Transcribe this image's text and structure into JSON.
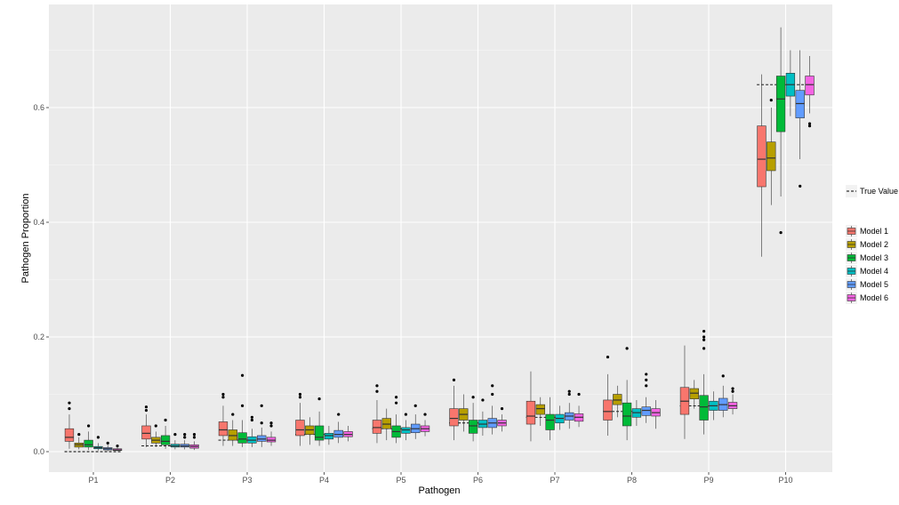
{
  "chart_data": {
    "type": "boxplot",
    "xlabel": "Pathogen",
    "ylabel": "Pathogen Proportion",
    "ylim": [
      -0.02,
      0.78
    ],
    "yticks": [
      0.0,
      0.2,
      0.4,
      0.6
    ],
    "ytick_labels": [
      "0.0",
      "0.2",
      "0.4",
      "0.6"
    ],
    "categories": [
      "P1",
      "P2",
      "P3",
      "P4",
      "P5",
      "P6",
      "P7",
      "P8",
      "P9",
      "P10"
    ],
    "grid": true,
    "legend_position": "right",
    "reference": {
      "name": "True Value",
      "style": "dashed",
      "values": [
        0.0,
        0.01,
        0.02,
        0.03,
        0.04,
        0.05,
        0.06,
        0.07,
        0.08,
        0.64
      ]
    },
    "series": [
      {
        "name": "Model 1",
        "color": "#F8766D",
        "boxes": [
          {
            "min": 0.005,
            "q1": 0.018,
            "median": 0.025,
            "q3": 0.04,
            "max": 0.065,
            "outliers": [
              0.075,
              0.085
            ]
          },
          {
            "min": 0.008,
            "q1": 0.022,
            "median": 0.032,
            "q3": 0.045,
            "max": 0.065,
            "outliers": [
              0.072,
              0.078
            ]
          },
          {
            "min": 0.01,
            "q1": 0.028,
            "median": 0.038,
            "q3": 0.052,
            "max": 0.08,
            "outliers": [
              0.095,
              0.1
            ]
          },
          {
            "min": 0.01,
            "q1": 0.028,
            "median": 0.038,
            "q3": 0.055,
            "max": 0.085,
            "outliers": [
              0.095,
              0.1
            ]
          },
          {
            "min": 0.015,
            "q1": 0.032,
            "median": 0.042,
            "q3": 0.055,
            "max": 0.09,
            "outliers": [
              0.105,
              0.115
            ]
          },
          {
            "min": 0.02,
            "q1": 0.045,
            "median": 0.058,
            "q3": 0.075,
            "max": 0.115,
            "outliers": [
              0.125
            ]
          },
          {
            "min": 0.018,
            "q1": 0.048,
            "median": 0.062,
            "q3": 0.088,
            "max": 0.14,
            "outliers": []
          },
          {
            "min": 0.028,
            "q1": 0.055,
            "median": 0.07,
            "q3": 0.09,
            "max": 0.135,
            "outliers": [
              0.165
            ]
          },
          {
            "min": 0.022,
            "q1": 0.065,
            "median": 0.088,
            "q3": 0.112,
            "max": 0.185,
            "outliers": []
          },
          {
            "min": 0.34,
            "q1": 0.462,
            "median": 0.51,
            "q3": 0.568,
            "max": 0.658,
            "outliers": []
          }
        ]
      },
      {
        "name": "Model 2",
        "color": "#B79F00",
        "boxes": [
          {
            "min": 0.004,
            "q1": 0.008,
            "median": 0.012,
            "q3": 0.015,
            "max": 0.025,
            "outliers": [
              0.03
            ]
          },
          {
            "min": 0.008,
            "q1": 0.015,
            "median": 0.02,
            "q3": 0.025,
            "max": 0.035,
            "outliers": [
              0.045
            ]
          },
          {
            "min": 0.01,
            "q1": 0.02,
            "median": 0.028,
            "q3": 0.038,
            "max": 0.055,
            "outliers": [
              0.065
            ]
          },
          {
            "min": 0.012,
            "q1": 0.03,
            "median": 0.038,
            "q3": 0.045,
            "max": 0.06,
            "outliers": []
          },
          {
            "min": 0.02,
            "q1": 0.04,
            "median": 0.048,
            "q3": 0.058,
            "max": 0.075,
            "outliers": []
          },
          {
            "min": 0.035,
            "q1": 0.055,
            "median": 0.065,
            "q3": 0.075,
            "max": 0.1,
            "outliers": []
          },
          {
            "min": 0.045,
            "q1": 0.065,
            "median": 0.075,
            "q3": 0.082,
            "max": 0.095,
            "outliers": []
          },
          {
            "min": 0.06,
            "q1": 0.082,
            "median": 0.09,
            "q3": 0.1,
            "max": 0.115,
            "outliers": []
          },
          {
            "min": 0.075,
            "q1": 0.092,
            "median": 0.102,
            "q3": 0.11,
            "max": 0.125,
            "outliers": []
          },
          {
            "min": 0.43,
            "q1": 0.49,
            "median": 0.512,
            "q3": 0.54,
            "max": 0.6,
            "outliers": [
              0.613
            ]
          }
        ]
      },
      {
        "name": "Model 3",
        "color": "#00BA38",
        "boxes": [
          {
            "min": 0.003,
            "q1": 0.008,
            "median": 0.012,
            "q3": 0.02,
            "max": 0.035,
            "outliers": [
              0.045
            ]
          },
          {
            "min": 0.005,
            "q1": 0.012,
            "median": 0.018,
            "q3": 0.028,
            "max": 0.045,
            "outliers": [
              0.055
            ]
          },
          {
            "min": 0.008,
            "q1": 0.015,
            "median": 0.022,
            "q3": 0.033,
            "max": 0.055,
            "outliers": [
              0.08,
              0.133
            ]
          },
          {
            "min": 0.01,
            "q1": 0.02,
            "median": 0.025,
            "q3": 0.045,
            "max": 0.07,
            "outliers": [
              0.092
            ]
          },
          {
            "min": 0.015,
            "q1": 0.025,
            "median": 0.035,
            "q3": 0.045,
            "max": 0.065,
            "outliers": [
              0.085,
              0.095
            ]
          },
          {
            "min": 0.018,
            "q1": 0.032,
            "median": 0.045,
            "q3": 0.055,
            "max": 0.085,
            "outliers": [
              0.095
            ]
          },
          {
            "min": 0.02,
            "q1": 0.038,
            "median": 0.055,
            "q3": 0.065,
            "max": 0.095,
            "outliers": []
          },
          {
            "min": 0.02,
            "q1": 0.045,
            "median": 0.062,
            "q3": 0.085,
            "max": 0.125,
            "outliers": [
              0.18
            ]
          },
          {
            "min": 0.03,
            "q1": 0.055,
            "median": 0.078,
            "q3": 0.098,
            "max": 0.135,
            "outliers": [
              0.18,
              0.195,
              0.2,
              0.21
            ]
          },
          {
            "min": 0.445,
            "q1": 0.558,
            "median": 0.615,
            "q3": 0.655,
            "max": 0.74,
            "outliers": [
              0.382
            ]
          }
        ]
      },
      {
        "name": "Model 4",
        "color": "#00BFC4",
        "boxes": [
          {
            "min": 0.002,
            "q1": 0.005,
            "median": 0.007,
            "q3": 0.009,
            "max": 0.015,
            "outliers": [
              0.025
            ]
          },
          {
            "min": 0.004,
            "q1": 0.008,
            "median": 0.01,
            "q3": 0.013,
            "max": 0.02,
            "outliers": [
              0.03
            ]
          },
          {
            "min": 0.008,
            "q1": 0.015,
            "median": 0.02,
            "q3": 0.026,
            "max": 0.04,
            "outliers": [
              0.055,
              0.06
            ]
          },
          {
            "min": 0.012,
            "q1": 0.022,
            "median": 0.028,
            "q3": 0.032,
            "max": 0.045,
            "outliers": []
          },
          {
            "min": 0.02,
            "q1": 0.032,
            "median": 0.038,
            "q3": 0.042,
            "max": 0.055,
            "outliers": [
              0.065
            ]
          },
          {
            "min": 0.028,
            "q1": 0.042,
            "median": 0.048,
            "q3": 0.055,
            "max": 0.07,
            "outliers": [
              0.09
            ]
          },
          {
            "min": 0.038,
            "q1": 0.05,
            "median": 0.058,
            "q3": 0.065,
            "max": 0.08,
            "outliers": []
          },
          {
            "min": 0.045,
            "q1": 0.06,
            "median": 0.068,
            "q3": 0.075,
            "max": 0.09,
            "outliers": []
          },
          {
            "min": 0.055,
            "q1": 0.072,
            "median": 0.08,
            "q3": 0.088,
            "max": 0.105,
            "outliers": []
          },
          {
            "min": 0.585,
            "q1": 0.62,
            "median": 0.64,
            "q3": 0.66,
            "max": 0.7,
            "outliers": []
          }
        ]
      },
      {
        "name": "Model 5",
        "color": "#619CFF",
        "boxes": [
          {
            "min": 0.001,
            "q1": 0.003,
            "median": 0.005,
            "q3": 0.007,
            "max": 0.012,
            "outliers": [
              0.015
            ]
          },
          {
            "min": 0.004,
            "q1": 0.008,
            "median": 0.01,
            "q3": 0.013,
            "max": 0.02,
            "outliers": [
              0.025,
              0.03
            ]
          },
          {
            "min": 0.008,
            "q1": 0.018,
            "median": 0.022,
            "q3": 0.028,
            "max": 0.042,
            "outliers": [
              0.05,
              0.08
            ]
          },
          {
            "min": 0.015,
            "q1": 0.025,
            "median": 0.03,
            "q3": 0.037,
            "max": 0.052,
            "outliers": [
              0.065
            ]
          },
          {
            "min": 0.022,
            "q1": 0.033,
            "median": 0.04,
            "q3": 0.048,
            "max": 0.065,
            "outliers": [
              0.08
            ]
          },
          {
            "min": 0.03,
            "q1": 0.042,
            "median": 0.05,
            "q3": 0.058,
            "max": 0.08,
            "outliers": [
              0.1,
              0.115
            ]
          },
          {
            "min": 0.04,
            "q1": 0.055,
            "median": 0.062,
            "q3": 0.068,
            "max": 0.085,
            "outliers": [
              0.1,
              0.105
            ]
          },
          {
            "min": 0.05,
            "q1": 0.063,
            "median": 0.072,
            "q3": 0.078,
            "max": 0.095,
            "outliers": [
              0.115,
              0.125,
              0.135
            ]
          },
          {
            "min": 0.06,
            "q1": 0.072,
            "median": 0.082,
            "q3": 0.093,
            "max": 0.115,
            "outliers": [
              0.132
            ]
          },
          {
            "min": 0.51,
            "q1": 0.582,
            "median": 0.607,
            "q3": 0.63,
            "max": 0.7,
            "outliers": [
              0.463
            ]
          }
        ]
      },
      {
        "name": "Model 6",
        "color": "#F564E3",
        "boxes": [
          {
            "min": 0.001,
            "q1": 0.002,
            "median": 0.003,
            "q3": 0.005,
            "max": 0.008,
            "outliers": [
              0.01
            ]
          },
          {
            "min": 0.003,
            "q1": 0.006,
            "median": 0.009,
            "q3": 0.012,
            "max": 0.018,
            "outliers": [
              0.025,
              0.03
            ]
          },
          {
            "min": 0.01,
            "q1": 0.017,
            "median": 0.02,
            "q3": 0.025,
            "max": 0.035,
            "outliers": [
              0.045,
              0.05
            ]
          },
          {
            "min": 0.018,
            "q1": 0.026,
            "median": 0.03,
            "q3": 0.035,
            "max": 0.045,
            "outliers": []
          },
          {
            "min": 0.027,
            "q1": 0.035,
            "median": 0.04,
            "q3": 0.045,
            "max": 0.055,
            "outliers": [
              0.065
            ]
          },
          {
            "min": 0.035,
            "q1": 0.045,
            "median": 0.05,
            "q3": 0.055,
            "max": 0.065,
            "outliers": [
              0.075
            ]
          },
          {
            "min": 0.043,
            "q1": 0.053,
            "median": 0.06,
            "q3": 0.066,
            "max": 0.08,
            "outliers": [
              0.1
            ]
          },
          {
            "min": 0.04,
            "q1": 0.062,
            "median": 0.068,
            "q3": 0.075,
            "max": 0.09,
            "outliers": []
          },
          {
            "min": 0.065,
            "q1": 0.075,
            "median": 0.08,
            "q3": 0.086,
            "max": 0.1,
            "outliers": [
              0.105,
              0.11
            ]
          },
          {
            "min": 0.59,
            "q1": 0.622,
            "median": 0.64,
            "q3": 0.655,
            "max": 0.69,
            "outliers": [
              0.568,
              0.572
            ]
          }
        ]
      }
    ]
  }
}
